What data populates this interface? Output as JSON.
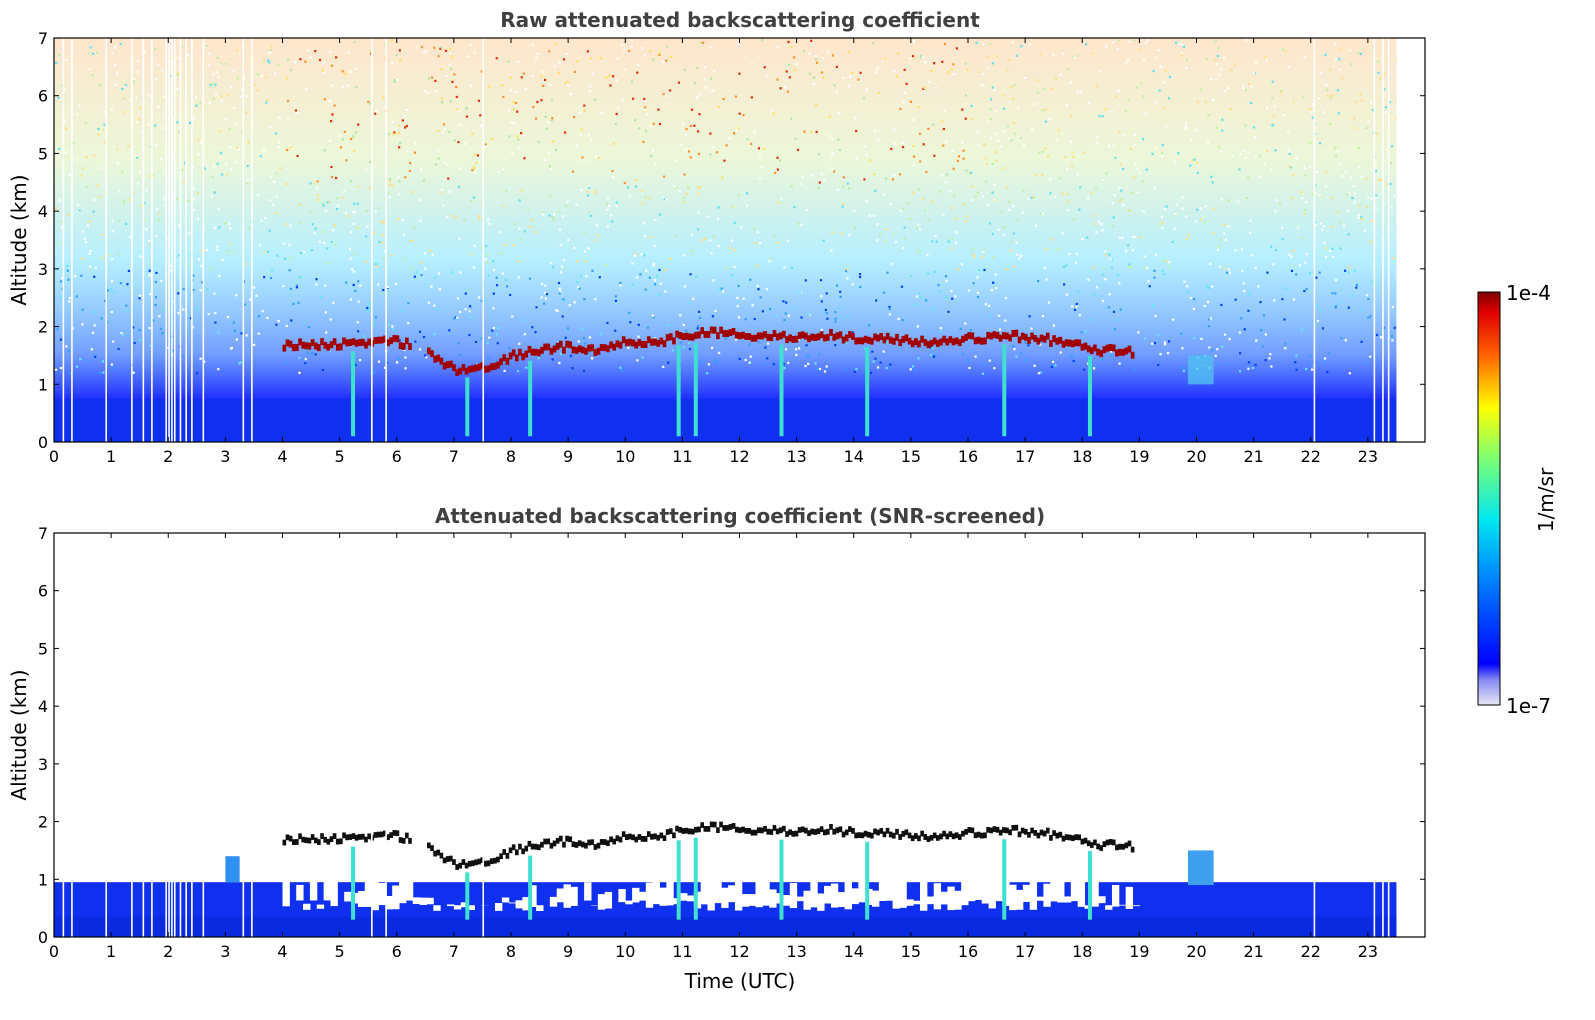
{
  "chart_data": [
    {
      "type": "heatmap",
      "title": "Raw attenuated backscattering coefficient",
      "ylabel": "Altitude (km)",
      "xlabel": "",
      "xlim": [
        0,
        24
      ],
      "ylim": [
        0,
        7
      ],
      "xticks": [
        "0",
        "1",
        "2",
        "3",
        "4",
        "5",
        "6",
        "7",
        "8",
        "9",
        "10",
        "11",
        "12",
        "13",
        "14",
        "15",
        "16",
        "17",
        "18",
        "19",
        "20",
        "21",
        "22",
        "23"
      ],
      "yticks": [
        "0",
        "1",
        "2",
        "3",
        "4",
        "5",
        "6",
        "7"
      ],
      "data_end_hour": 23.5,
      "cloud_top_km": [
        [
          4.0,
          1.72
        ],
        [
          4.5,
          1.75
        ],
        [
          5.0,
          1.75
        ],
        [
          5.5,
          1.8
        ],
        [
          5.9,
          1.82
        ],
        [
          6.5,
          1.65
        ],
        [
          7.0,
          1.3
        ],
        [
          7.5,
          1.35
        ],
        [
          8.0,
          1.55
        ],
        [
          8.5,
          1.65
        ],
        [
          9.0,
          1.72
        ],
        [
          9.5,
          1.62
        ],
        [
          10.0,
          1.8
        ],
        [
          10.5,
          1.78
        ],
        [
          11.0,
          1.9
        ],
        [
          11.5,
          1.95
        ],
        [
          12.0,
          1.92
        ],
        [
          12.5,
          1.88
        ],
        [
          13.0,
          1.9
        ],
        [
          13.5,
          1.92
        ],
        [
          14.0,
          1.85
        ],
        [
          14.5,
          1.85
        ],
        [
          15.0,
          1.82
        ],
        [
          15.5,
          1.78
        ],
        [
          16.0,
          1.85
        ],
        [
          16.7,
          1.9
        ],
        [
          17.3,
          1.85
        ],
        [
          17.8,
          1.75
        ],
        [
          18.3,
          1.65
        ],
        [
          18.9,
          1.62
        ]
      ]
    },
    {
      "type": "heatmap",
      "title": "Attenuated backscattering coefficient (SNR-screened)",
      "ylabel": "Altitude (km)",
      "xlabel": "Time (UTC)",
      "xlim": [
        0,
        24
      ],
      "ylim": [
        0,
        7
      ],
      "xticks": [
        "0",
        "1",
        "2",
        "3",
        "4",
        "5",
        "6",
        "7",
        "8",
        "9",
        "10",
        "11",
        "12",
        "13",
        "14",
        "15",
        "16",
        "17",
        "18",
        "19",
        "20",
        "21",
        "22",
        "23"
      ],
      "yticks": [
        "0",
        "1",
        "2",
        "3",
        "4",
        "5",
        "6",
        "7"
      ],
      "data_end_hour": 23.5
    }
  ],
  "colorbar": {
    "max_label": "1e-4",
    "min_label": "1e-7",
    "unit_label": "1/m/sr",
    "scale": "log"
  }
}
